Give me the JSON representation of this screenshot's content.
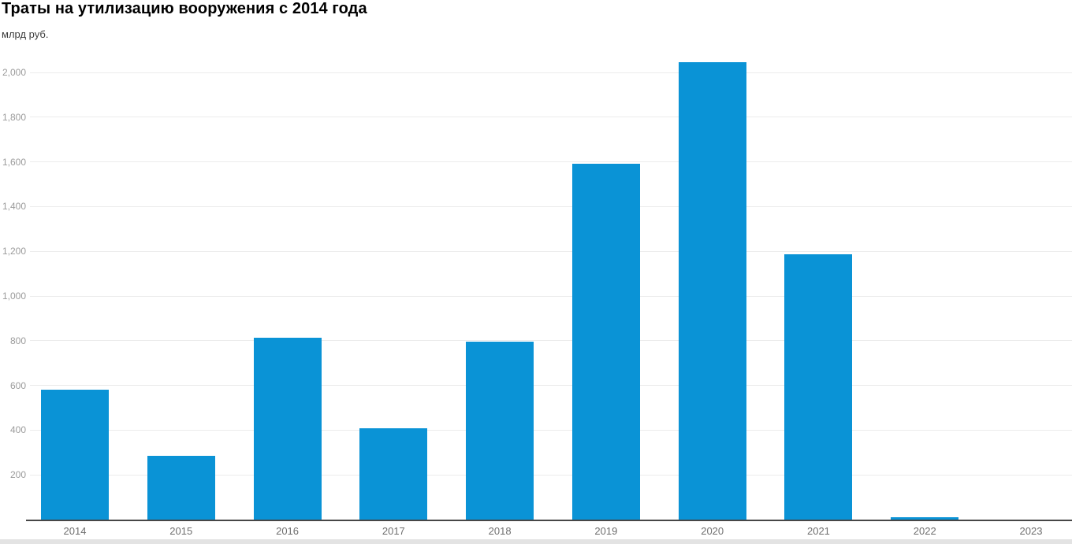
{
  "header": {
    "title": "Траты на утилизацию вооружения с 2014 года",
    "unit_label": "млрд руб."
  },
  "colors": {
    "bar": "#0a93d6",
    "gridline": "#ececec",
    "axis_line": "#474747",
    "y_tick_label": "#9b9b9b",
    "x_tick_label": "#6e6e6e",
    "footer_strip": "#e3e3e3",
    "title": "#000000",
    "background": "#ffffff"
  },
  "chart_data": {
    "type": "bar",
    "title": "Траты на утилизацию вооружения с 2014 года",
    "ylabel": "млрд руб.",
    "categories": [
      "2014",
      "2015",
      "2016",
      "2017",
      "2018",
      "2019",
      "2020",
      "2021",
      "2022",
      "2023"
    ],
    "values": [
      580,
      285,
      815,
      410,
      795,
      1590,
      2045,
      1185,
      10,
      0
    ],
    "ylim": [
      0,
      2100
    ],
    "y_ticks": [
      200,
      400,
      600,
      800,
      1000,
      1200,
      1400,
      1600,
      1800,
      2000
    ],
    "y_tick_labels": [
      "200",
      "400",
      "600",
      "800",
      "1,000",
      "1,200",
      "1,400",
      "1,600",
      "1,800",
      "2,000"
    ],
    "grid": true,
    "legend": false,
    "bar_color": "#0a93d6"
  }
}
